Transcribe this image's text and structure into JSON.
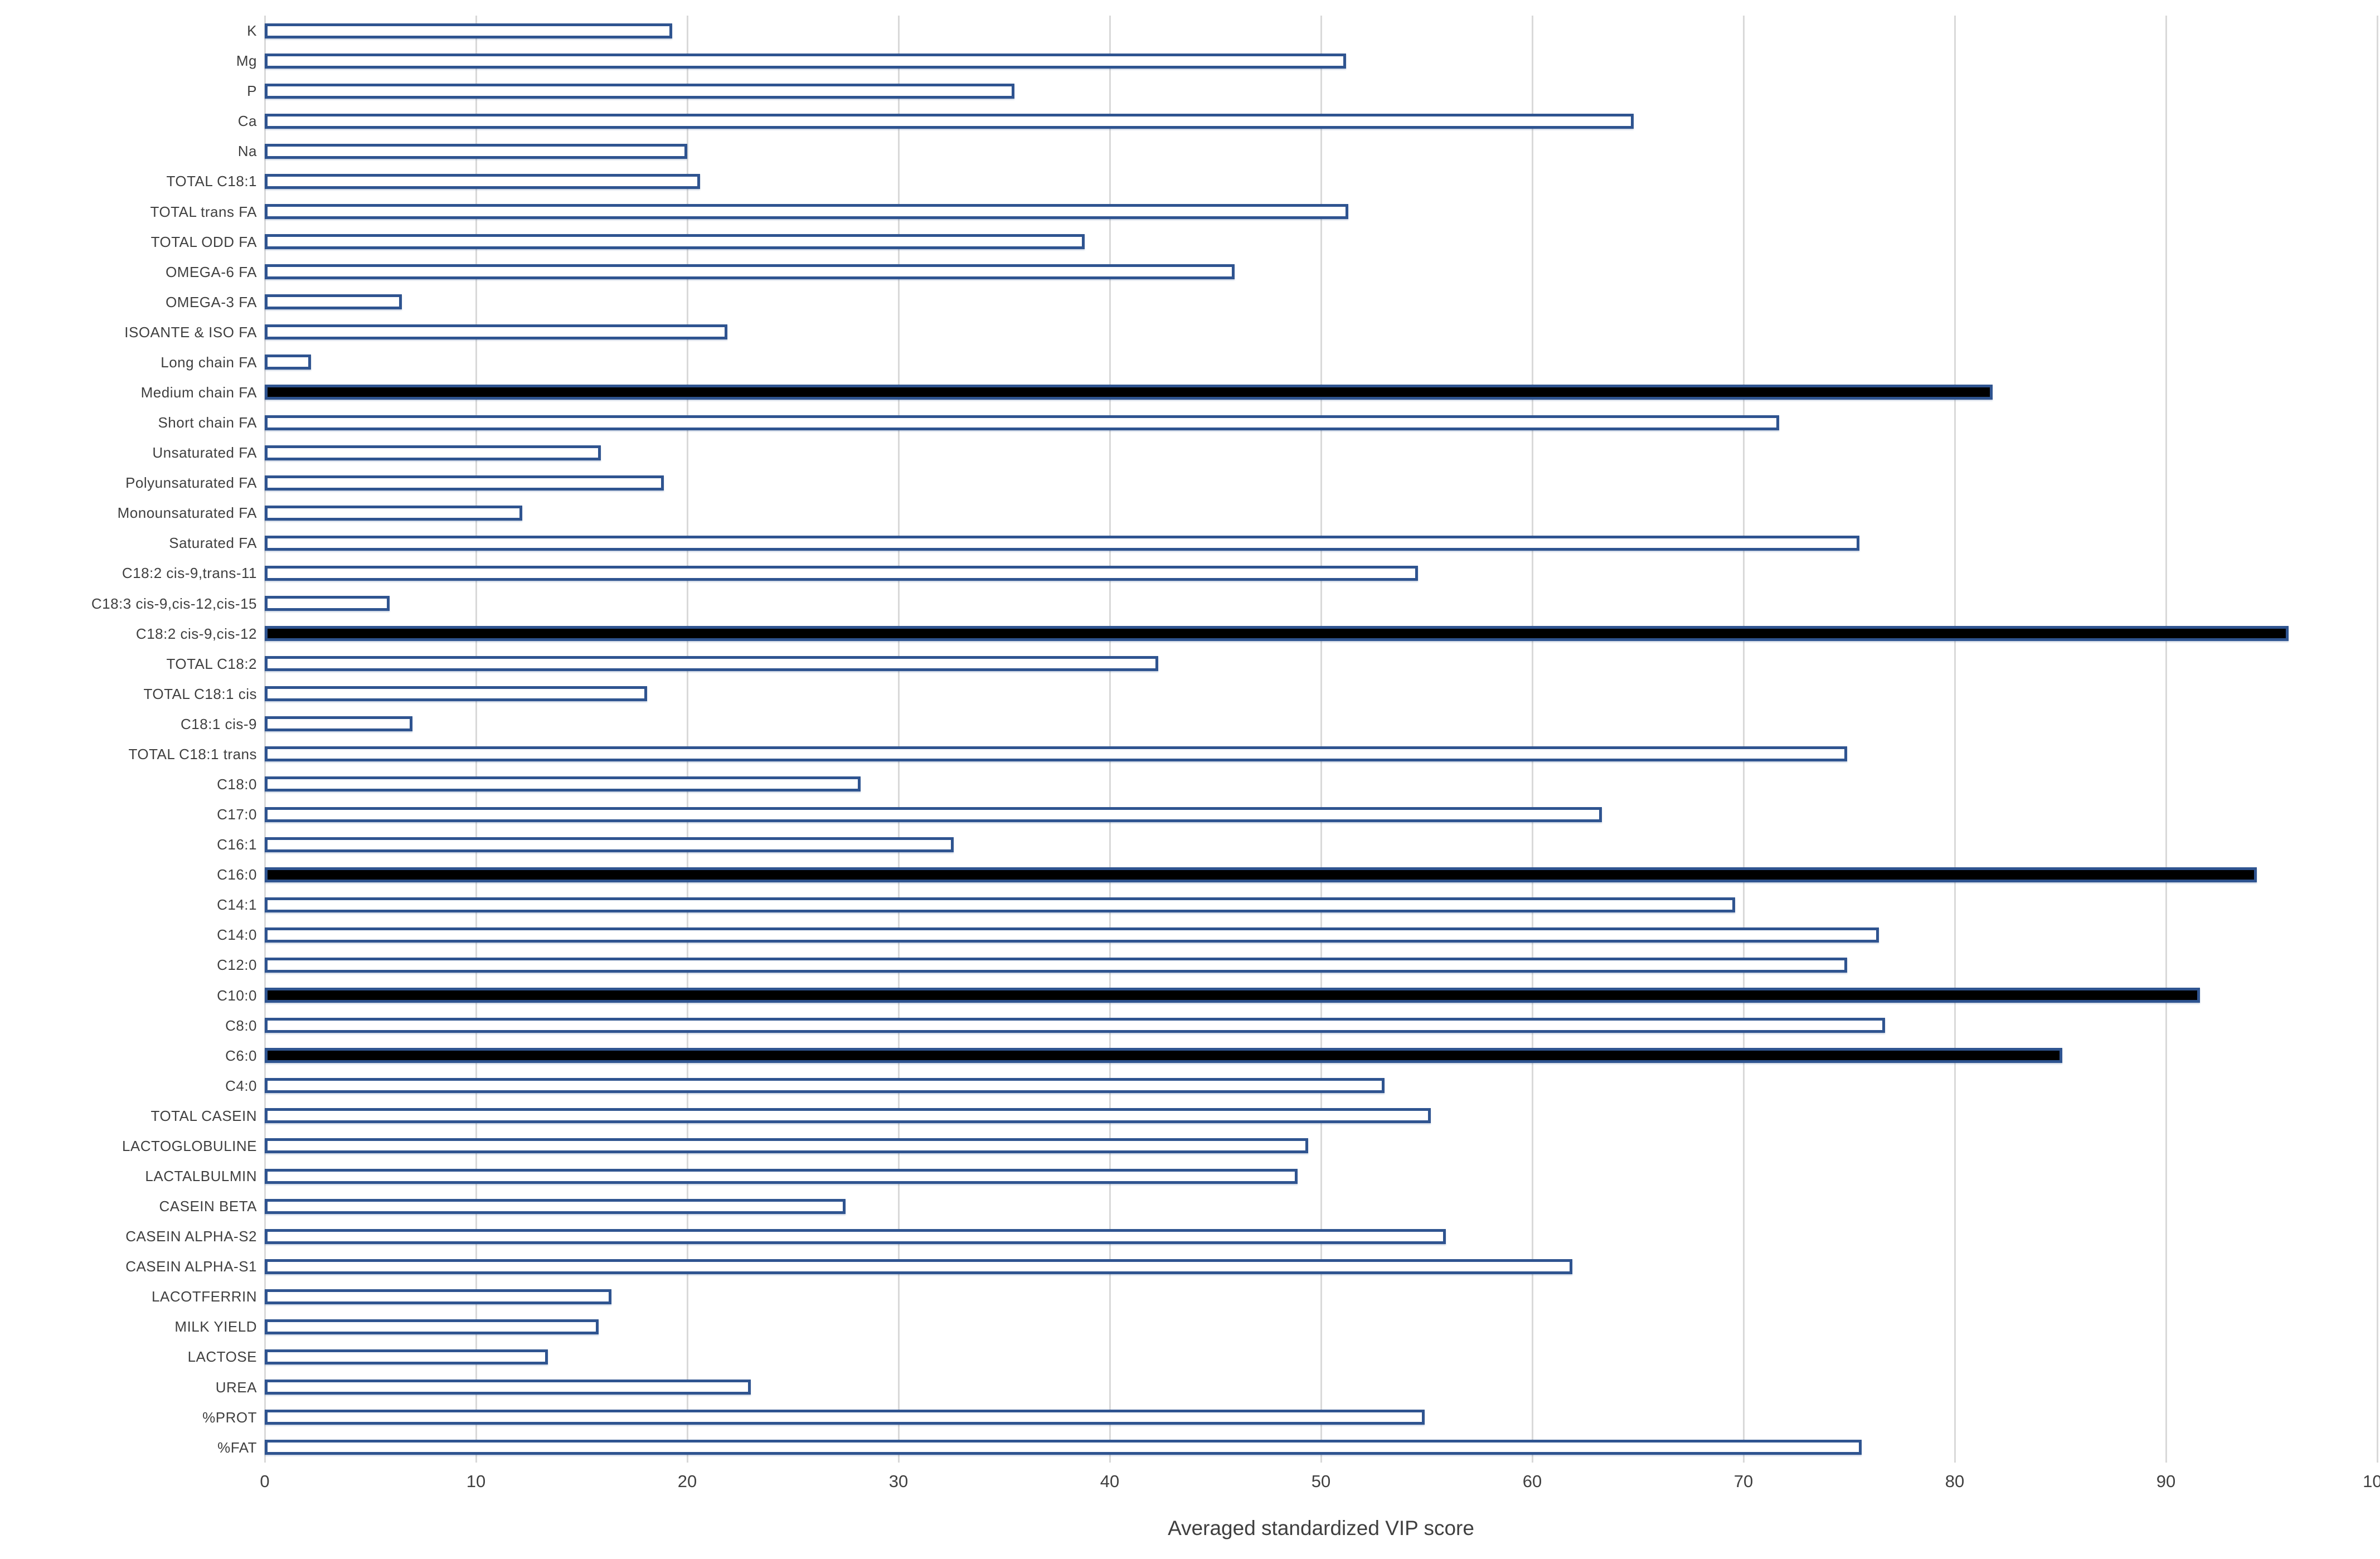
{
  "chart_data": {
    "type": "bar",
    "orientation": "horizontal",
    "title": "",
    "xlabel": "Averaged standardized VIP score",
    "ylabel": "",
    "xlim": [
      0,
      100
    ],
    "xticks": [
      0,
      10,
      20,
      30,
      40,
      50,
      60,
      70,
      80,
      90,
      100
    ],
    "grid": true,
    "legend": "none",
    "categories": [
      "K",
      "Mg",
      "P",
      "Ca",
      "Na",
      "TOTAL C18:1",
      "TOTAL trans FA",
      "TOTAL ODD FA",
      "OMEGA-6 FA",
      "OMEGA-3 FA",
      "ISOANTE & ISO FA",
      "Long chain FA",
      "Medium chain FA",
      "Short chain FA",
      "Unsaturated FA",
      "Polyunsaturated FA",
      "Monounsaturated FA",
      "Saturated FA",
      "C18:2 cis-9,trans-11",
      "C18:3 cis-9,cis-12,cis-15",
      "C18:2 cis-9,cis-12",
      "TOTAL C18:2",
      "TOTAL C18:1 cis",
      "C18:1 cis-9",
      "TOTAL C18:1 trans",
      "C18:0",
      "C17:0",
      "C16:1",
      "C16:0",
      "C14:1",
      "C14:0",
      "C12:0",
      "C10:0",
      "C8:0",
      "C6:0",
      "C4:0",
      "TOTAL CASEIN",
      "LACTOGLOBULINE",
      "LACTALBULMIN",
      "CASEIN BETA",
      "CASEIN ALPHA-S2",
      "CASEIN ALPHA-S1",
      "LACOTFERRIN",
      "MILK YIELD",
      "LACTOSE",
      "UREA",
      "%PROT",
      "%FAT"
    ],
    "values": [
      19.3,
      51.2,
      35.5,
      64.8,
      20.0,
      20.6,
      51.3,
      38.8,
      45.9,
      6.5,
      21.9,
      2.2,
      81.8,
      71.7,
      15.9,
      18.9,
      12.2,
      75.5,
      54.6,
      5.9,
      95.8,
      42.3,
      18.1,
      7.0,
      74.9,
      28.2,
      63.3,
      32.6,
      94.3,
      69.6,
      76.4,
      74.9,
      91.6,
      76.7,
      85.1,
      53.0,
      55.2,
      49.4,
      48.9,
      27.5,
      55.9,
      61.9,
      16.4,
      15.8,
      13.4,
      23.0,
      54.9,
      75.6
    ],
    "highlighted": [
      false,
      false,
      false,
      false,
      false,
      false,
      false,
      false,
      false,
      false,
      false,
      false,
      true,
      false,
      false,
      false,
      false,
      false,
      false,
      false,
      true,
      false,
      false,
      false,
      false,
      false,
      false,
      false,
      true,
      false,
      false,
      false,
      true,
      false,
      true,
      false,
      false,
      false,
      false,
      false,
      false,
      false,
      false,
      false,
      false,
      false,
      false,
      false
    ],
    "colors": {
      "bar_border": "#2f5490",
      "bar_fill": "#ffffff",
      "highlight_fill": "#000000",
      "gridline": "#d9d9d9",
      "text": "#404040"
    }
  }
}
